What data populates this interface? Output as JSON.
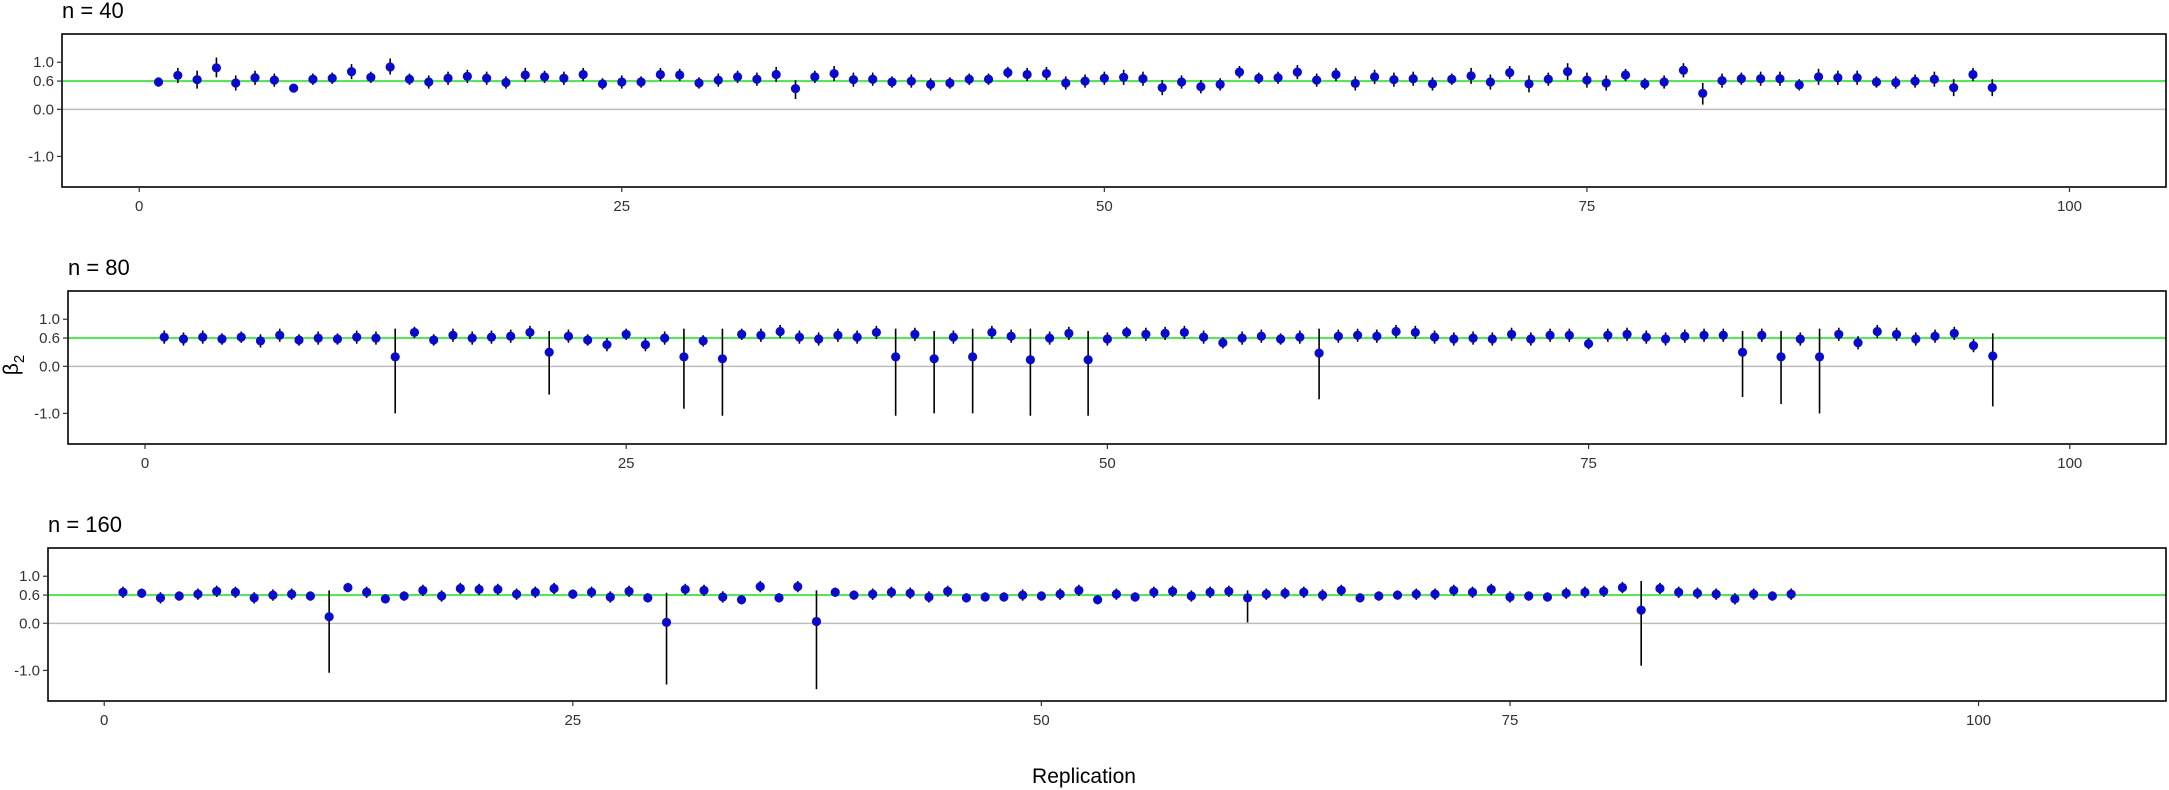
{
  "figure": {
    "xlabel": "Replication",
    "ylabel_base": "β",
    "ylabel_sub": "2"
  },
  "colors": {
    "point": "#0a0acc",
    "errorbar": "#000000",
    "reference_line": "#5ce35c",
    "zero_line": "#bdbdbd",
    "frame": "#000000"
  },
  "chart_data": [
    {
      "type": "scatter",
      "title": "n = 40",
      "xlim": [
        -4,
        105
      ],
      "ylim": [
        -1.65,
        1.6
      ],
      "xticks": [
        0,
        25,
        50,
        75,
        100
      ],
      "yticks": [
        -1.0,
        0.0,
        0.6,
        1.0
      ],
      "ytick_labels": [
        "-1.0",
        "0.0",
        "0.6",
        "1.0"
      ],
      "reference_line": 0.6,
      "zero_line": 0.0,
      "x": [
        1,
        2,
        3,
        4,
        5,
        6,
        7,
        8,
        9,
        10,
        11,
        12,
        13,
        14,
        15,
        16,
        17,
        18,
        19,
        20,
        21,
        22,
        23,
        24,
        25,
        26,
        27,
        28,
        29,
        30,
        31,
        32,
        33,
        34,
        35,
        36,
        37,
        38,
        39,
        40,
        41,
        42,
        43,
        44,
        45,
        46,
        47,
        48,
        49,
        50,
        51,
        52,
        53,
        54,
        55,
        56,
        57,
        58,
        59,
        60,
        61,
        62,
        63,
        64,
        65,
        66,
        67,
        68,
        69,
        70,
        71,
        72,
        73,
        74,
        75,
        76,
        77,
        78,
        79,
        80,
        81,
        82,
        83,
        84,
        85,
        86,
        87,
        88,
        89,
        90,
        91,
        92,
        93,
        94,
        95,
        96
      ],
      "y": [
        0.58,
        0.72,
        0.63,
        0.88,
        0.56,
        0.67,
        0.62,
        0.45,
        0.64,
        0.66,
        0.8,
        0.68,
        0.9,
        0.64,
        0.58,
        0.66,
        0.7,
        0.66,
        0.57,
        0.73,
        0.69,
        0.66,
        0.74,
        0.54,
        0.58,
        0.58,
        0.74,
        0.73,
        0.56,
        0.62,
        0.69,
        0.64,
        0.74,
        0.44,
        0.69,
        0.76,
        0.63,
        0.64,
        0.58,
        0.6,
        0.53,
        0.56,
        0.64,
        0.64,
        0.78,
        0.74,
        0.76,
        0.56,
        0.6,
        0.66,
        0.68,
        0.65,
        0.46,
        0.58,
        0.48,
        0.53,
        0.79,
        0.66,
        0.67,
        0.79,
        0.62,
        0.74,
        0.55,
        0.69,
        0.63,
        0.65,
        0.54,
        0.64,
        0.71,
        0.58,
        0.78,
        0.54,
        0.64,
        0.8,
        0.62,
        0.56,
        0.73,
        0.54,
        0.58,
        0.83,
        0.34,
        0.61,
        0.65,
        0.65,
        0.65,
        0.52,
        0.69,
        0.67,
        0.67,
        0.58,
        0.57,
        0.6,
        0.64,
        0.46,
        0.74,
        0.46
      ],
      "lower": [
        0.48,
        0.56,
        0.44,
        0.68,
        0.4,
        0.52,
        0.48,
        0.36,
        0.52,
        0.54,
        0.64,
        0.56,
        0.74,
        0.52,
        0.44,
        0.52,
        0.56,
        0.52,
        0.44,
        0.58,
        0.56,
        0.52,
        0.6,
        0.42,
        0.44,
        0.46,
        0.6,
        0.6,
        0.44,
        0.48,
        0.56,
        0.5,
        0.58,
        0.22,
        0.56,
        0.6,
        0.48,
        0.5,
        0.46,
        0.46,
        0.4,
        0.44,
        0.52,
        0.52,
        0.66,
        0.6,
        0.62,
        0.42,
        0.46,
        0.52,
        0.52,
        0.5,
        0.3,
        0.44,
        0.34,
        0.4,
        0.66,
        0.54,
        0.54,
        0.64,
        0.48,
        0.6,
        0.4,
        0.54,
        0.48,
        0.5,
        0.4,
        0.52,
        0.54,
        0.42,
        0.64,
        0.36,
        0.5,
        0.62,
        0.46,
        0.4,
        0.6,
        0.42,
        0.44,
        0.68,
        0.1,
        0.46,
        0.52,
        0.5,
        0.5,
        0.4,
        0.52,
        0.52,
        0.52,
        0.46,
        0.44,
        0.46,
        0.48,
        0.28,
        0.6,
        0.28
      ],
      "upper": [
        0.68,
        0.88,
        0.82,
        1.1,
        0.72,
        0.82,
        0.76,
        0.54,
        0.76,
        0.78,
        0.96,
        0.8,
        1.08,
        0.76,
        0.72,
        0.8,
        0.84,
        0.8,
        0.7,
        0.88,
        0.82,
        0.8,
        0.88,
        0.66,
        0.72,
        0.7,
        0.88,
        0.86,
        0.68,
        0.76,
        0.82,
        0.78,
        0.9,
        0.62,
        0.82,
        0.92,
        0.78,
        0.78,
        0.7,
        0.74,
        0.66,
        0.68,
        0.76,
        0.76,
        0.9,
        0.88,
        0.9,
        0.7,
        0.74,
        0.8,
        0.84,
        0.8,
        0.62,
        0.72,
        0.62,
        0.66,
        0.92,
        0.78,
        0.8,
        0.94,
        0.76,
        0.88,
        0.7,
        0.84,
        0.78,
        0.8,
        0.68,
        0.76,
        0.88,
        0.74,
        0.92,
        0.72,
        0.78,
        0.98,
        0.78,
        0.72,
        0.86,
        0.66,
        0.72,
        0.98,
        0.56,
        0.76,
        0.78,
        0.8,
        0.8,
        0.64,
        0.86,
        0.82,
        0.82,
        0.7,
        0.7,
        0.74,
        0.8,
        0.64,
        0.88,
        0.64
      ]
    },
    {
      "type": "scatter",
      "title": "n = 80",
      "xlim": [
        -4,
        105
      ],
      "ylim": [
        -1.65,
        1.6
      ],
      "xticks": [
        0,
        25,
        50,
        75,
        100
      ],
      "yticks": [
        -1.0,
        0.0,
        0.6,
        1.0
      ],
      "ytick_labels": [
        "-1.0",
        "0.0",
        "0.6",
        "1.0"
      ],
      "reference_line": 0.6,
      "zero_line": 0.0,
      "x": [
        1,
        2,
        3,
        4,
        5,
        6,
        7,
        8,
        9,
        10,
        11,
        12,
        13,
        14,
        15,
        16,
        17,
        18,
        19,
        20,
        21,
        22,
        23,
        24,
        25,
        26,
        27,
        28,
        29,
        30,
        31,
        32,
        33,
        34,
        35,
        36,
        37,
        38,
        39,
        40,
        41,
        42,
        43,
        44,
        45,
        46,
        47,
        48,
        49,
        50,
        51,
        52,
        53,
        54,
        55,
        56,
        57,
        58,
        59,
        60,
        61,
        62,
        63,
        64,
        65,
        66,
        67,
        68,
        69,
        70,
        71,
        72,
        73,
        74,
        75,
        76,
        77,
        78,
        79,
        80,
        81,
        82,
        83,
        84,
        85,
        86,
        87,
        88,
        89,
        90,
        91,
        92,
        93,
        94,
        95,
        96
      ],
      "y": [
        0.62,
        0.58,
        0.62,
        0.58,
        0.62,
        0.54,
        0.66,
        0.56,
        0.6,
        0.58,
        0.62,
        0.6,
        0.2,
        0.72,
        0.56,
        0.66,
        0.6,
        0.62,
        0.64,
        0.72,
        0.3,
        0.64,
        0.56,
        0.46,
        0.68,
        0.46,
        0.6,
        0.2,
        0.54,
        0.16,
        0.68,
        0.66,
        0.74,
        0.62,
        0.58,
        0.66,
        0.62,
        0.72,
        0.2,
        0.68,
        0.16,
        0.62,
        0.2,
        0.72,
        0.64,
        0.14,
        0.6,
        0.7,
        0.14,
        0.58,
        0.72,
        0.68,
        0.7,
        0.72,
        0.62,
        0.5,
        0.6,
        0.64,
        0.58,
        0.62,
        0.28,
        0.64,
        0.66,
        0.64,
        0.74,
        0.72,
        0.62,
        0.58,
        0.6,
        0.58,
        0.68,
        0.58,
        0.66,
        0.66,
        0.48,
        0.66,
        0.68,
        0.62,
        0.58,
        0.64,
        0.66,
        0.66,
        0.3,
        0.66,
        0.2,
        0.58,
        0.2,
        0.68,
        0.5,
        0.74,
        0.68,
        0.58,
        0.64,
        0.7,
        0.44,
        0.22
      ],
      "lower": [
        0.48,
        0.44,
        0.48,
        0.46,
        0.5,
        0.4,
        0.52,
        0.44,
        0.46,
        0.46,
        0.48,
        0.46,
        -1.0,
        0.6,
        0.44,
        0.52,
        0.46,
        0.48,
        0.5,
        0.58,
        -0.6,
        0.5,
        0.44,
        0.32,
        0.56,
        0.32,
        0.46,
        -0.9,
        0.42,
        -1.05,
        0.56,
        0.52,
        0.6,
        0.48,
        0.44,
        0.52,
        0.48,
        0.58,
        -1.05,
        0.54,
        -1.0,
        0.48,
        -1.0,
        0.58,
        0.5,
        -1.05,
        0.46,
        0.56,
        -1.05,
        0.44,
        0.6,
        0.54,
        0.56,
        0.58,
        0.48,
        0.38,
        0.46,
        0.5,
        0.46,
        0.48,
        -0.7,
        0.5,
        0.52,
        0.5,
        0.6,
        0.58,
        0.48,
        0.44,
        0.46,
        0.44,
        0.54,
        0.44,
        0.52,
        0.52,
        0.36,
        0.52,
        0.54,
        0.48,
        0.44,
        0.5,
        0.52,
        0.52,
        -0.65,
        0.52,
        -0.8,
        0.44,
        -1.0,
        0.54,
        0.36,
        0.6,
        0.54,
        0.44,
        0.5,
        0.56,
        0.3,
        -0.85
      ],
      "upper": [
        0.76,
        0.72,
        0.76,
        0.7,
        0.74,
        0.68,
        0.8,
        0.68,
        0.74,
        0.7,
        0.76,
        0.74,
        0.8,
        0.84,
        0.68,
        0.8,
        0.74,
        0.76,
        0.78,
        0.86,
        0.75,
        0.78,
        0.68,
        0.6,
        0.8,
        0.6,
        0.74,
        0.8,
        0.66,
        0.8,
        0.8,
        0.8,
        0.88,
        0.76,
        0.72,
        0.8,
        0.76,
        0.86,
        0.8,
        0.82,
        0.75,
        0.76,
        0.8,
        0.86,
        0.78,
        0.8,
        0.74,
        0.84,
        0.75,
        0.72,
        0.84,
        0.82,
        0.84,
        0.86,
        0.76,
        0.62,
        0.74,
        0.78,
        0.7,
        0.76,
        0.8,
        0.78,
        0.8,
        0.78,
        0.88,
        0.86,
        0.76,
        0.72,
        0.74,
        0.72,
        0.82,
        0.72,
        0.8,
        0.8,
        0.6,
        0.8,
        0.82,
        0.76,
        0.72,
        0.78,
        0.8,
        0.8,
        0.75,
        0.8,
        0.75,
        0.72,
        0.8,
        0.82,
        0.64,
        0.88,
        0.82,
        0.72,
        0.78,
        0.84,
        0.58,
        0.7
      ]
    },
    {
      "type": "scatter",
      "title": "n = 160",
      "xlim": [
        -3,
        110
      ],
      "ylim": [
        -1.65,
        1.6
      ],
      "xticks": [
        0,
        25,
        50,
        75,
        100
      ],
      "yticks": [
        -1.0,
        0.0,
        0.6,
        1.0
      ],
      "ytick_labels": [
        "-1.0",
        "0.0",
        "0.6",
        "1.0"
      ],
      "reference_line": 0.6,
      "zero_line": 0.0,
      "x": [
        1,
        2,
        3,
        4,
        5,
        6,
        7,
        8,
        9,
        10,
        11,
        12,
        13,
        14,
        15,
        16,
        17,
        18,
        19,
        20,
        21,
        22,
        23,
        24,
        25,
        26,
        27,
        28,
        29,
        30,
        31,
        32,
        33,
        34,
        35,
        36,
        37,
        38,
        39,
        40,
        41,
        42,
        43,
        44,
        45,
        46,
        47,
        48,
        49,
        50,
        51,
        52,
        53,
        54,
        55,
        56,
        57,
        58,
        59,
        60,
        61,
        62,
        63,
        64,
        65,
        66,
        67,
        68,
        69,
        70,
        71,
        72,
        73,
        74,
        75,
        76,
        77,
        78,
        79,
        80,
        81,
        82,
        83,
        84,
        85,
        86,
        87,
        88,
        89,
        90
      ],
      "y": [
        0.66,
        0.64,
        0.54,
        0.58,
        0.62,
        0.68,
        0.66,
        0.54,
        0.6,
        0.62,
        0.58,
        0.14,
        0.76,
        0.66,
        0.52,
        0.58,
        0.7,
        0.58,
        0.74,
        0.72,
        0.72,
        0.62,
        0.66,
        0.74,
        0.62,
        0.66,
        0.56,
        0.68,
        0.54,
        0.02,
        0.72,
        0.7,
        0.56,
        0.5,
        0.78,
        0.54,
        0.78,
        0.04,
        0.66,
        0.6,
        0.62,
        0.66,
        0.64,
        0.56,
        0.68,
        0.54,
        0.56,
        0.56,
        0.6,
        0.58,
        0.62,
        0.7,
        0.5,
        0.62,
        0.56,
        0.66,
        0.68,
        0.58,
        0.66,
        0.68,
        0.54,
        0.62,
        0.64,
        0.66,
        0.6,
        0.7,
        0.54,
        0.58,
        0.6,
        0.62,
        0.62,
        0.7,
        0.66,
        0.72,
        0.56,
        0.58,
        0.56,
        0.64,
        0.66,
        0.68,
        0.76,
        0.28,
        0.74,
        0.66,
        0.64,
        0.62,
        0.52,
        0.62,
        0.58,
        0.62
      ],
      "lower": [
        0.54,
        0.54,
        0.42,
        0.48,
        0.5,
        0.56,
        0.54,
        0.42,
        0.48,
        0.5,
        0.48,
        -1.05,
        0.66,
        0.54,
        0.42,
        0.48,
        0.58,
        0.46,
        0.62,
        0.6,
        0.6,
        0.5,
        0.54,
        0.62,
        0.52,
        0.54,
        0.44,
        0.56,
        0.44,
        -1.3,
        0.6,
        0.58,
        0.44,
        0.4,
        0.66,
        0.44,
        0.66,
        -1.4,
        0.56,
        0.5,
        0.5,
        0.54,
        0.52,
        0.44,
        0.56,
        0.44,
        0.46,
        0.46,
        0.48,
        0.48,
        0.5,
        0.58,
        0.4,
        0.5,
        0.46,
        0.54,
        0.56,
        0.46,
        0.54,
        0.56,
        0.02,
        0.5,
        0.52,
        0.54,
        0.48,
        0.58,
        0.44,
        0.48,
        0.5,
        0.5,
        0.5,
        0.58,
        0.54,
        0.6,
        0.44,
        0.48,
        0.46,
        0.52,
        0.54,
        0.56,
        0.64,
        -0.9,
        0.62,
        0.54,
        0.52,
        0.5,
        0.4,
        0.5,
        0.48,
        0.5
      ],
      "upper": [
        0.78,
        0.74,
        0.66,
        0.68,
        0.74,
        0.8,
        0.78,
        0.66,
        0.72,
        0.74,
        0.68,
        0.7,
        0.86,
        0.78,
        0.62,
        0.68,
        0.82,
        0.7,
        0.86,
        0.84,
        0.84,
        0.74,
        0.78,
        0.86,
        0.72,
        0.78,
        0.68,
        0.8,
        0.64,
        0.65,
        0.84,
        0.82,
        0.68,
        0.6,
        0.9,
        0.64,
        0.9,
        0.7,
        0.76,
        0.7,
        0.74,
        0.78,
        0.76,
        0.68,
        0.8,
        0.64,
        0.66,
        0.66,
        0.72,
        0.68,
        0.74,
        0.82,
        0.6,
        0.74,
        0.66,
        0.78,
        0.8,
        0.7,
        0.78,
        0.8,
        0.7,
        0.74,
        0.76,
        0.78,
        0.72,
        0.82,
        0.64,
        0.68,
        0.7,
        0.74,
        0.74,
        0.82,
        0.78,
        0.84,
        0.68,
        0.68,
        0.66,
        0.76,
        0.78,
        0.8,
        0.88,
        0.9,
        0.86,
        0.78,
        0.76,
        0.74,
        0.64,
        0.74,
        0.68,
        0.74
      ]
    }
  ]
}
